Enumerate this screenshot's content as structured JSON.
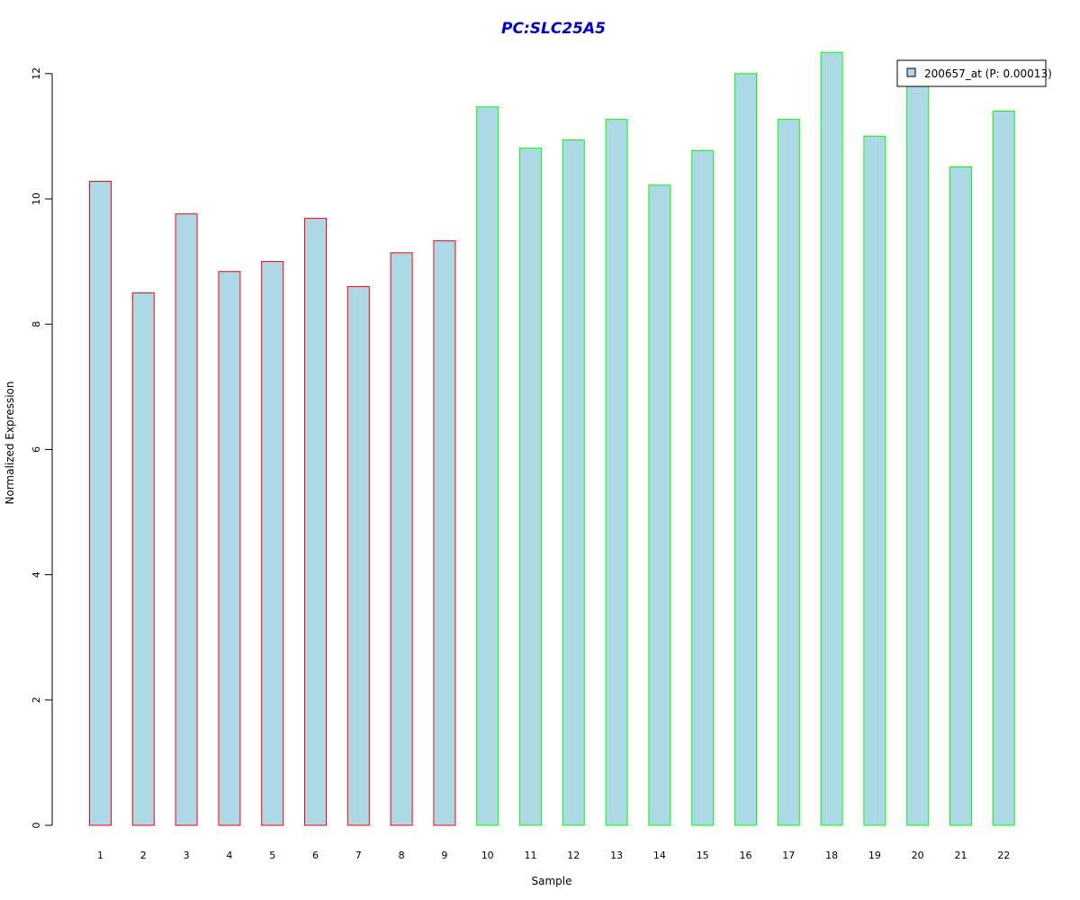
{
  "chart_data": {
    "type": "bar",
    "title": "PC:SLC25A5",
    "xlabel": "Sample",
    "ylabel": "Normalized Expression",
    "ylim": [
      0,
      12.3
    ],
    "yticks": [
      "0",
      "2",
      "4",
      "6",
      "8",
      "10",
      "12"
    ],
    "categories": [
      "1",
      "2",
      "3",
      "4",
      "5",
      "6",
      "7",
      "8",
      "9",
      "10",
      "11",
      "12",
      "13",
      "14",
      "15",
      "16",
      "17",
      "18",
      "19",
      "20",
      "21",
      "22"
    ],
    "values": [
      10.28,
      8.5,
      9.76,
      8.84,
      9.0,
      9.69,
      8.6,
      9.14,
      9.33,
      11.47,
      10.81,
      10.94,
      11.27,
      10.22,
      10.77,
      12.0,
      11.27,
      12.34,
      11.0,
      11.86,
      10.51,
      11.4
    ],
    "groups": [
      "red",
      "red",
      "red",
      "red",
      "red",
      "red",
      "red",
      "red",
      "red",
      "green",
      "green",
      "green",
      "green",
      "green",
      "green",
      "green",
      "green",
      "green",
      "green",
      "green",
      "green",
      "green"
    ],
    "legend": {
      "label": "200657_at (P: 0.00013)",
      "placement": "top-right"
    },
    "colors": {
      "title": "#0000CC",
      "bar_fill": "#ADD8E6",
      "group_red_border": "#FF0000",
      "group_green_border": "#00FF00",
      "axis": "#000000"
    },
    "grid": false
  }
}
